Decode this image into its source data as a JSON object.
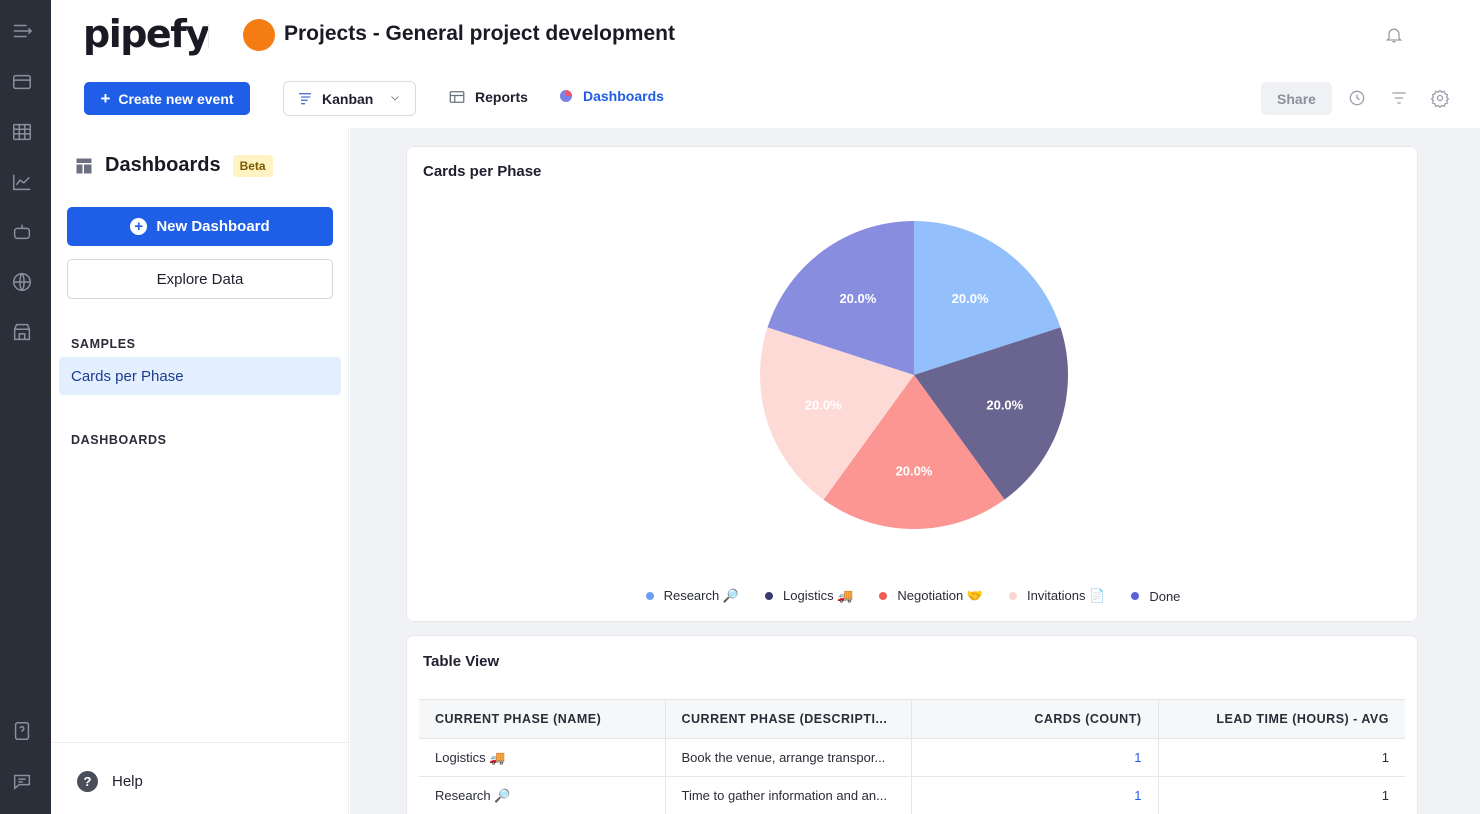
{
  "app": {
    "logo": "pipefy"
  },
  "header": {
    "title": "Projects - General project development",
    "pipe_color": "#f57c12"
  },
  "rail": {
    "icons": [
      "menu-icon",
      "inbox-icon",
      "table-icon",
      "chart-icon",
      "bot-icon",
      "globe-icon",
      "store-icon",
      "help-book-icon",
      "chat-icon"
    ]
  },
  "toolbar": {
    "create_label": "Create new event",
    "view_selected": "Kanban",
    "reports_label": "Reports",
    "dashboards_label": "Dashboards",
    "share_label": "Share"
  },
  "sidebar": {
    "title": "Dashboards",
    "badge": "Beta",
    "new_dashboard_label": "New Dashboard",
    "explore_label": "Explore Data",
    "samples_heading": "SAMPLES",
    "samples": [
      {
        "label": "Cards per Phase"
      }
    ],
    "dashboards_heading": "DASHBOARDS",
    "help_label": "Help"
  },
  "accent": "#1f5ee6",
  "chart_card": {
    "title": "Cards per Phase"
  },
  "chart_data": {
    "type": "pie",
    "title": "Cards per Phase",
    "slices": [
      {
        "name": "Research 🔎",
        "value": 20.0,
        "label": "20.0%",
        "color": "#93bffb"
      },
      {
        "name": "Logistics 🚚",
        "value": 20.0,
        "label": "20.0%",
        "color": "#6a6590"
      },
      {
        "name": "Negotiation 🤝",
        "value": 20.0,
        "label": "20.0%",
        "color": "#fb9692"
      },
      {
        "name": "Invitations 📄",
        "value": 20.0,
        "label": "20.0%",
        "color": "#fedad6"
      },
      {
        "name": "Done",
        "value": 20.0,
        "label": "20.0%",
        "color": "#888de0"
      }
    ],
    "legend_position": "bottom-center"
  },
  "legend_colors": [
    "#6e9ff5",
    "#3a3a6e",
    "#f05d57",
    "#fbd5d1",
    "#5a63d8"
  ],
  "table_card": {
    "title": "Table View",
    "columns": [
      "CURRENT PHASE (NAME)",
      "CURRENT PHASE (DESCRIPTI...",
      "CARDS (COUNT)",
      "LEAD TIME (HOURS) - AVG"
    ],
    "rows": [
      [
        "Logistics 🚚",
        "Book the venue, arrange transpor...",
        "1",
        "1"
      ],
      [
        "Research 🔎",
        "Time to gather information and an...",
        "1",
        "1"
      ]
    ]
  }
}
